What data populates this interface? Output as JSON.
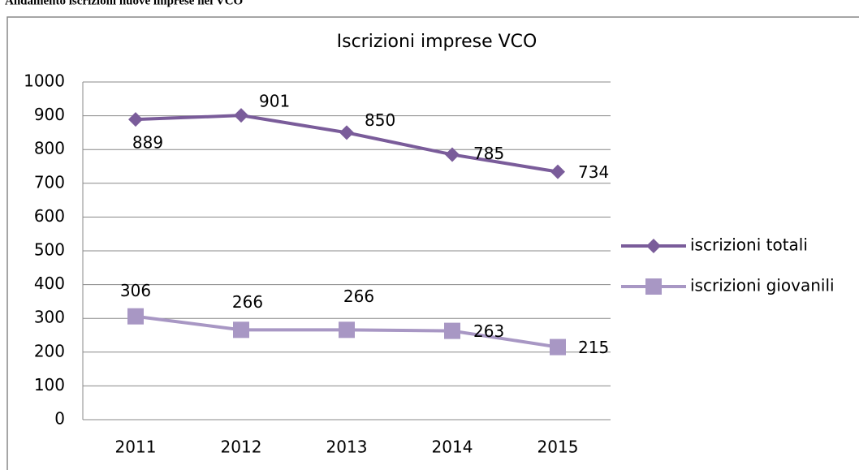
{
  "heading": "Andamento iscrizioni nuove imprese nel VCO",
  "chart_data": {
    "type": "line",
    "title": "Iscrizioni imprese VCO",
    "categories": [
      "2011",
      "2012",
      "2013",
      "2014",
      "2015"
    ],
    "series": [
      {
        "name": "iscrizioni totali",
        "color": "#7a5c9a",
        "marker": "diamond",
        "values": [
          889,
          901,
          850,
          785,
          734
        ]
      },
      {
        "name": "iscrizioni giovanili",
        "color": "#a897c4",
        "marker": "square",
        "values": [
          306,
          266,
          266,
          263,
          215
        ]
      }
    ],
    "ylim": [
      0,
      1000
    ],
    "yticks": [
      0,
      100,
      200,
      300,
      400,
      500,
      600,
      700,
      800,
      900,
      1000
    ],
    "grid": true,
    "legend": "right"
  }
}
